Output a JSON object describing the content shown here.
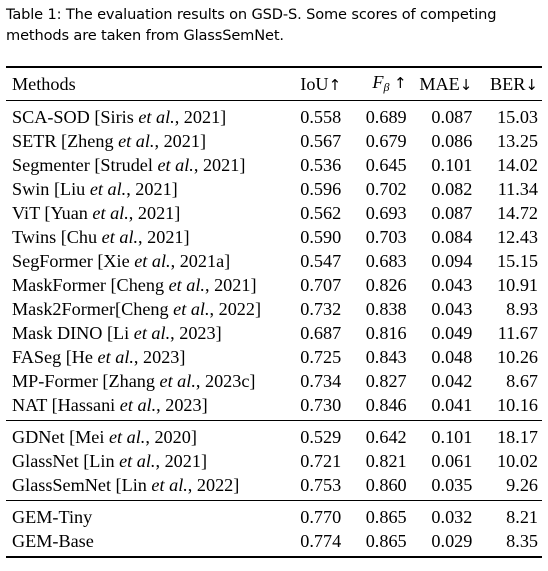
{
  "caption": {
    "label": "Table 1:",
    "text": "The evaluation results on GSD-S. Some scores of competing methods are taken from GlassSemNet."
  },
  "headers": {
    "methods": "Methods",
    "iou": "IoU",
    "f_symbol": "F",
    "f_sub": "β",
    "mae": "MAE",
    "ber": "BER",
    "up_arrow": "↑",
    "down_arrow": "↓"
  },
  "groups": [
    {
      "rows": [
        {
          "name": "SCA-SOD [Siris ",
          "etal": "et al.",
          "ref": ", 2021]",
          "iou": "0.558",
          "f": "0.689",
          "mae": "0.087",
          "ber": "15.03"
        },
        {
          "name": "SETR [Zheng ",
          "etal": "et al.",
          "ref": ", 2021]",
          "iou": "0.567",
          "f": "0.679",
          "mae": "0.086",
          "ber": "13.25"
        },
        {
          "name": "Segmenter [Strudel ",
          "etal": "et al.",
          "ref": ", 2021]",
          "iou": "0.536",
          "f": "0.645",
          "mae": "0.101",
          "ber": "14.02"
        },
        {
          "name": "Swin [Liu ",
          "etal": "et al.",
          "ref": ", 2021]",
          "iou": "0.596",
          "f": "0.702",
          "mae": "0.082",
          "ber": "11.34"
        },
        {
          "name": "ViT [Yuan ",
          "etal": "et al.",
          "ref": ", 2021]",
          "iou": "0.562",
          "f": "0.693",
          "mae": "0.087",
          "ber": "14.72"
        },
        {
          "name": "Twins [Chu ",
          "etal": "et al.",
          "ref": ", 2021]",
          "iou": "0.590",
          "f": "0.703",
          "mae": "0.084",
          "ber": "12.43"
        },
        {
          "name": "SegFormer [Xie ",
          "etal": "et al.",
          "ref": ", 2021a]",
          "iou": "0.547",
          "f": "0.683",
          "mae": "0.094",
          "ber": "15.15"
        },
        {
          "name": "MaskFormer [Cheng ",
          "etal": "et al.",
          "ref": ", 2021]",
          "iou": "0.707",
          "f": "0.826",
          "mae": "0.043",
          "ber": "10.91"
        },
        {
          "name": "Mask2Former[Cheng ",
          "etal": "et al.",
          "ref": ", 2022]",
          "iou": "0.732",
          "f": "0.838",
          "mae": "0.043",
          "ber": "8.93"
        },
        {
          "name": "Mask DINO [Li ",
          "etal": "et al.",
          "ref": ", 2023]",
          "iou": "0.687",
          "f": "0.816",
          "mae": "0.049",
          "ber": "11.67"
        },
        {
          "name": "FASeg [He ",
          "etal": "et al.",
          "ref": ", 2023]",
          "iou": "0.725",
          "f": "0.843",
          "mae": "0.048",
          "ber": "10.26"
        },
        {
          "name": "MP-Former [Zhang ",
          "etal": "et al.",
          "ref": ", 2023c]",
          "iou": "0.734",
          "f": "0.827",
          "mae": "0.042",
          "ber": "8.67"
        },
        {
          "name": "NAT [Hassani ",
          "etal": "et al.",
          "ref": ", 2023]",
          "iou": "0.730",
          "f": "0.846",
          "mae": "0.041",
          "ber": "10.16"
        }
      ]
    },
    {
      "rows": [
        {
          "name": "GDNet [Mei ",
          "etal": "et al.",
          "ref": ", 2020]",
          "iou": "0.529",
          "f": "0.642",
          "mae": "0.101",
          "ber": "18.17"
        },
        {
          "name": "GlassNet [Lin ",
          "etal": "et al.",
          "ref": ", 2021]",
          "iou": "0.721",
          "f": "0.821",
          "mae": "0.061",
          "ber": "10.02"
        },
        {
          "name": "GlassSemNet [Lin ",
          "etal": "et al.",
          "ref": ", 2022]",
          "iou": "0.753",
          "f": "0.860",
          "mae": "0.035",
          "ber": "9.26"
        }
      ]
    },
    {
      "rows": [
        {
          "name": "GEM-Tiny",
          "etal": "",
          "ref": "",
          "iou": "0.770",
          "f": "0.865",
          "mae": "0.032",
          "ber": "8.21",
          "bold": [
            "ber"
          ]
        },
        {
          "name": "GEM-Base",
          "etal": "",
          "ref": "",
          "iou": "0.774",
          "f": "0.865",
          "mae": "0.029",
          "ber": "8.35",
          "bold": [
            "iou",
            "f",
            "mae"
          ]
        }
      ]
    }
  ]
}
